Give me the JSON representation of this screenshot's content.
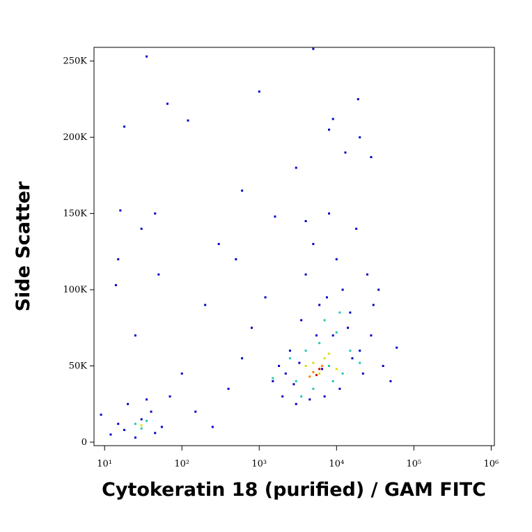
{
  "chart_data": {
    "type": "scatter",
    "x_label": "Cytokeratin 18 (purified) / GAM FITC",
    "y_label": "Side Scatter",
    "x_log": true,
    "xlim": [
      7.3,
      1100000
    ],
    "ylim": [
      -2300,
      259000
    ],
    "xticks": [
      {
        "value": 10,
        "label": "10¹"
      },
      {
        "value": 100,
        "label": "10²"
      },
      {
        "value": 1000,
        "label": "10³"
      },
      {
        "value": 10000,
        "label": "10⁴"
      },
      {
        "value": 100000,
        "label": "10⁵"
      },
      {
        "value": 1000000,
        "label": "10⁶"
      }
    ],
    "yticks": [
      0,
      {
        "value": 50000,
        "label": "50K"
      },
      {
        "value": 100000,
        "label": "100K"
      },
      {
        "value": 150000,
        "label": "150K"
      },
      {
        "value": 200000,
        "label": "200K"
      },
      {
        "value": 250000,
        "label": "250K"
      }
    ],
    "series": [
      {
        "color": "#0000c8",
        "x": [
          12,
          18,
          25,
          30,
          40,
          55,
          20,
          35,
          15,
          45,
          9,
          70,
          100,
          150,
          250,
          400,
          600,
          800,
          1200,
          1500,
          2000,
          2500,
          3000,
          3500,
          4000,
          5000,
          6000,
          7000,
          8000,
          9000,
          10000,
          12000,
          15000,
          18000,
          20000,
          25000,
          30000,
          40000,
          50000,
          60000,
          1800,
          2200,
          2800,
          3300,
          4500,
          5500,
          6500,
          7500,
          11000,
          14000,
          16000,
          22000,
          28000,
          35000,
          13000,
          20000,
          8000,
          5000,
          4000,
          3000,
          1000,
          600,
          300,
          200,
          50,
          25,
          30,
          35,
          65,
          18,
          120,
          15,
          14,
          16,
          45,
          9000,
          19000,
          28000,
          500,
          1600
        ],
        "values": [
          5000,
          8000,
          3000,
          15000,
          20000,
          10000,
          25000,
          28000,
          12000,
          6000,
          18000,
          30000,
          45000,
          20000,
          10000,
          35000,
          55000,
          75000,
          95000,
          40000,
          30000,
          60000,
          25000,
          80000,
          110000,
          130000,
          90000,
          30000,
          150000,
          70000,
          120000,
          100000,
          85000,
          140000,
          60000,
          110000,
          90000,
          50000,
          40000,
          62000,
          50000,
          45000,
          38000,
          52000,
          28000,
          70000,
          48000,
          95000,
          35000,
          75000,
          55000,
          45000,
          70000,
          100000,
          190000,
          200000,
          205000,
          258000,
          145000,
          180000,
          230000,
          165000,
          130000,
          90000,
          110000,
          70000,
          140000,
          253000,
          222000,
          207000,
          211000,
          120000,
          103000,
          152000,
          150000,
          212000,
          225000,
          187000,
          120000,
          148000
        ]
      },
      {
        "color": "#20c8b0",
        "x": [
          25,
          30,
          35,
          1500,
          2500,
          3000,
          4000,
          5000,
          6000,
          8000,
          10000,
          12000,
          15000,
          20000,
          7000,
          3500,
          9000,
          11000
        ],
        "values": [
          12000,
          9000,
          14000,
          42000,
          55000,
          40000,
          60000,
          35000,
          65000,
          50000,
          72000,
          45000,
          60000,
          52000,
          80000,
          30000,
          40000,
          85000
        ]
      },
      {
        "color": "#d8e000",
        "x": [
          4000,
          6000,
          8000,
          5000,
          10000,
          7000,
          30
        ],
        "values": [
          50000,
          45000,
          58000,
          52000,
          48000,
          55000,
          11000
        ]
      },
      {
        "color": "#ff8000",
        "x": [
          5000,
          6500,
          4500
        ],
        "values": [
          46000,
          50000,
          43000
        ]
      },
      {
        "color": "#e00000",
        "x": [
          5500,
          6000
        ],
        "values": [
          44000,
          48000
        ]
      }
    ]
  }
}
